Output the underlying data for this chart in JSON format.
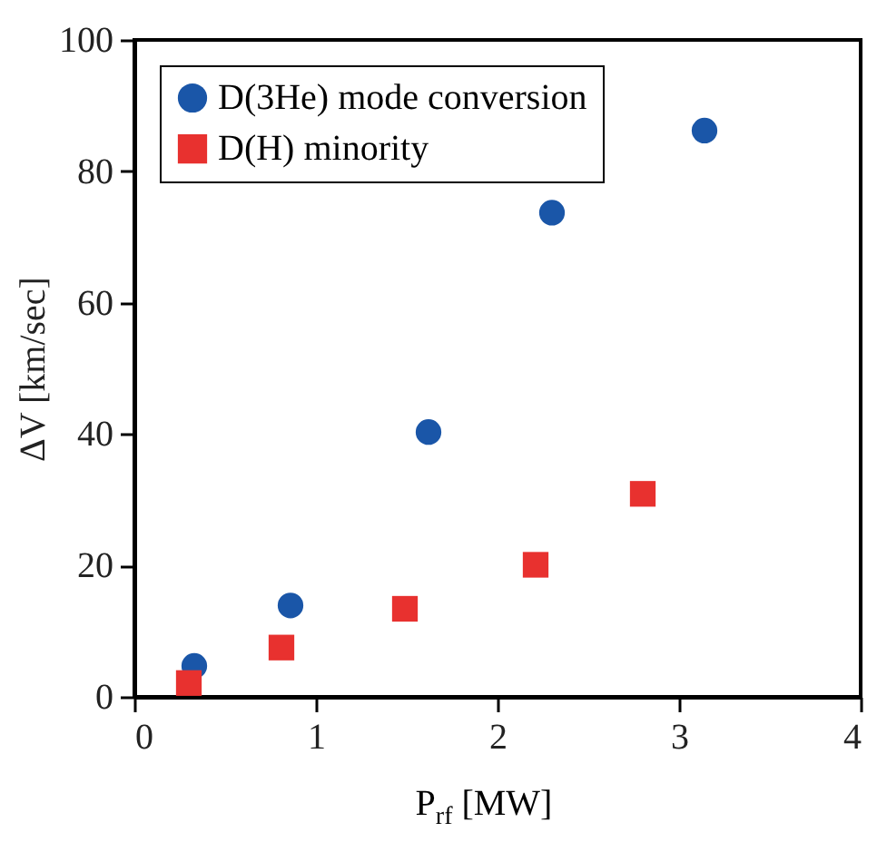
{
  "chart_data": {
    "type": "scatter",
    "xlabel": "P$_{rf}$ [MW]",
    "ylabel": "ΔV [km/sec]",
    "xlim": [
      0,
      4
    ],
    "xticks": [
      0,
      1,
      2,
      3,
      4
    ],
    "ylim": [
      0,
      100
    ],
    "yticks": [
      0,
      20,
      40,
      60,
      80,
      100
    ],
    "grid": false,
    "legend": "top left",
    "series": [
      {
        "name": "D(3He) mode conversion",
        "color": "#1a56a8",
        "marker": "circle",
        "x": [
          0.33,
          0.86,
          1.62,
          2.3,
          3.14
        ],
        "values": [
          4.7,
          13.9,
          40.3,
          73.7,
          86.2
        ]
      },
      {
        "name": "D(H) minority",
        "color": "#e8312f",
        "marker": "square",
        "x": [
          0.3,
          0.81,
          1.49,
          2.21,
          2.8
        ],
        "values": [
          2.1,
          7.5,
          13.4,
          20.1,
          30.9
        ]
      }
    ]
  }
}
